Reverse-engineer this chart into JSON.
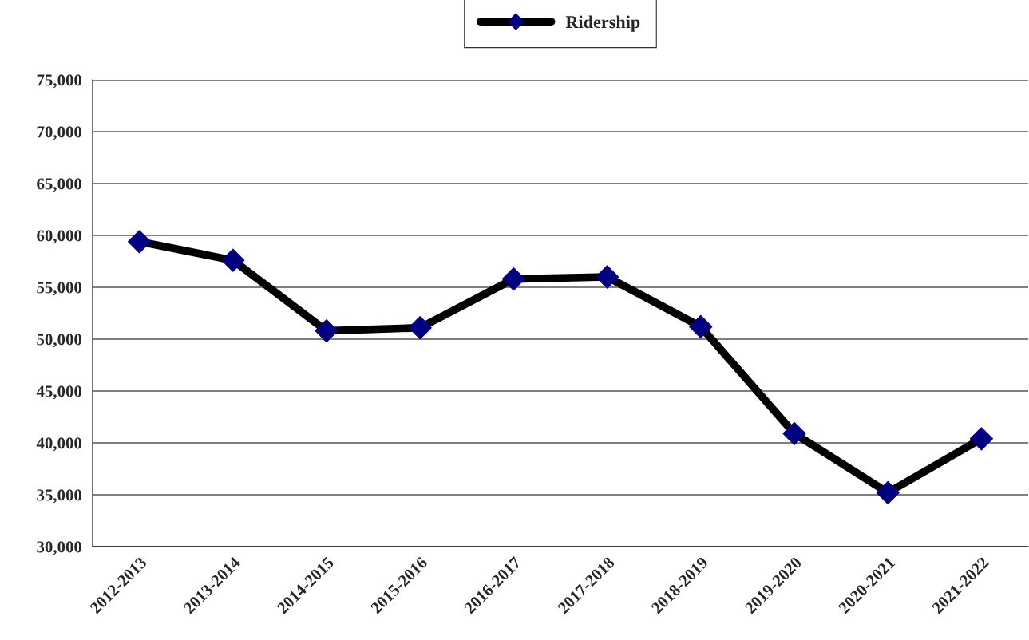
{
  "chart_data": {
    "type": "line",
    "categories": [
      "2012-2013",
      "2013-2014",
      "2014-2015",
      "2015-2016",
      "2016-2017",
      "2017-2018",
      "2018-2019",
      "2019-2020",
      "2020-2021",
      "2021-2022"
    ],
    "series": [
      {
        "name": "Ridership",
        "color": "#000000",
        "colors": [
          "#000080",
          "#000080",
          "#000080",
          "#000080",
          "#000080",
          "#000080",
          "#000080",
          "#000080",
          "#000080",
          "#000080"
        ],
        "values": [
          59400,
          57600,
          50800,
          51100,
          55800,
          56000,
          51200,
          40900,
          35200,
          40400
        ]
      }
    ],
    "ylim": [
      30000,
      75000
    ],
    "yticks": [
      {
        "value": 30000,
        "label": "30,000"
      },
      {
        "value": 35000,
        "label": "35,000"
      },
      {
        "value": 40000,
        "label": "40,000"
      },
      {
        "value": 45000,
        "label": "45,000"
      },
      {
        "value": 50000,
        "label": "50,000"
      },
      {
        "value": 55000,
        "label": "55,000"
      },
      {
        "value": 60000,
        "label": "60,000"
      },
      {
        "value": 65000,
        "label": "65,000"
      },
      {
        "value": 70000,
        "label": "70,000"
      },
      {
        "value": 75000,
        "label": "75,000"
      }
    ],
    "grid": "y",
    "legend": "top",
    "marker": "diamond",
    "line_style": "solid"
  }
}
